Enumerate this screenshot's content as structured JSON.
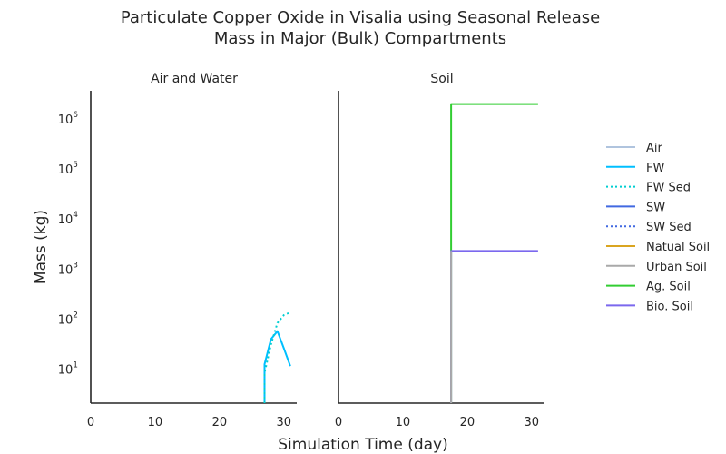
{
  "figure": {
    "title_line1": "Particulate Copper Oxide in Visalia using Seasonal Release",
    "title_line2": "Mass in Major (Bulk) Compartments",
    "xlabel": "Simulation Time (day)",
    "ylabel": "Mass (kg)"
  },
  "legend": [
    {
      "label": "Air",
      "color": "#b0c4de",
      "style": "solid"
    },
    {
      "label": "FW",
      "color": "#00bfff",
      "style": "solid"
    },
    {
      "label": "FW Sed",
      "color": "#00ced1",
      "style": "dotted"
    },
    {
      "label": "SW",
      "color": "#4169e1",
      "style": "solid"
    },
    {
      "label": "SW Sed",
      "color": "#4169e1",
      "style": "dotted"
    },
    {
      "label": "Natual Soil",
      "color": "#daa520",
      "style": "solid"
    },
    {
      "label": "Urban Soil",
      "color": "#a9a9a9",
      "style": "solid"
    },
    {
      "label": "Ag. Soil",
      "color": "#32cd32",
      "style": "solid"
    },
    {
      "label": "Bio. Soil",
      "color": "#7b68ee",
      "style": "solid"
    }
  ],
  "chart_data": [
    {
      "type": "line",
      "title": "Air and Water",
      "xlim": [
        0,
        32
      ],
      "ylim": [
        2,
        3500000
      ],
      "yscale": "log",
      "xticks": [
        0,
        10,
        20,
        30
      ],
      "yticks": [
        {
          "value": 10,
          "base": "10",
          "exp": "1"
        },
        {
          "value": 100,
          "base": "10",
          "exp": "2"
        },
        {
          "value": 1000,
          "base": "10",
          "exp": "3"
        },
        {
          "value": 10000,
          "base": "10",
          "exp": "4"
        },
        {
          "value": 100000,
          "base": "10",
          "exp": "5"
        },
        {
          "value": 1000000,
          "base": "10",
          "exp": "6"
        }
      ],
      "grid": false,
      "series": [
        {
          "name": "FW",
          "color": "#00bfff",
          "style": "solid",
          "x": [
            27,
            27,
            28,
            29,
            30,
            31
          ],
          "y": [
            2,
            12,
            38,
            55,
            25,
            11
          ]
        },
        {
          "name": "FW Sed",
          "color": "#00ced1",
          "style": "dotted",
          "x": [
            27,
            27,
            28,
            29,
            30,
            31
          ],
          "y": [
            2,
            8,
            30,
            80,
            115,
            130
          ]
        }
      ]
    },
    {
      "type": "line",
      "title": "Soil",
      "xlim": [
        0,
        32
      ],
      "ylim": [
        2,
        3500000
      ],
      "yscale": "log",
      "xticks": [
        0,
        10,
        20,
        30
      ],
      "yticks": [],
      "grid": false,
      "series": [
        {
          "name": "Ag. Soil",
          "color": "#32cd32",
          "style": "solid",
          "x": [
            17.5,
            17.5,
            31
          ],
          "y": [
            2,
            1900000,
            1900000
          ]
        },
        {
          "name": "Bio. Soil",
          "color": "#7b68ee",
          "style": "solid",
          "x": [
            17.5,
            17.5,
            31
          ],
          "y": [
            2,
            2200,
            2200
          ]
        },
        {
          "name": "Urban Soil",
          "color": "#a9a9a9",
          "style": "solid",
          "x": [
            17.5,
            17.5
          ],
          "y": [
            2,
            2200
          ]
        }
      ]
    }
  ]
}
